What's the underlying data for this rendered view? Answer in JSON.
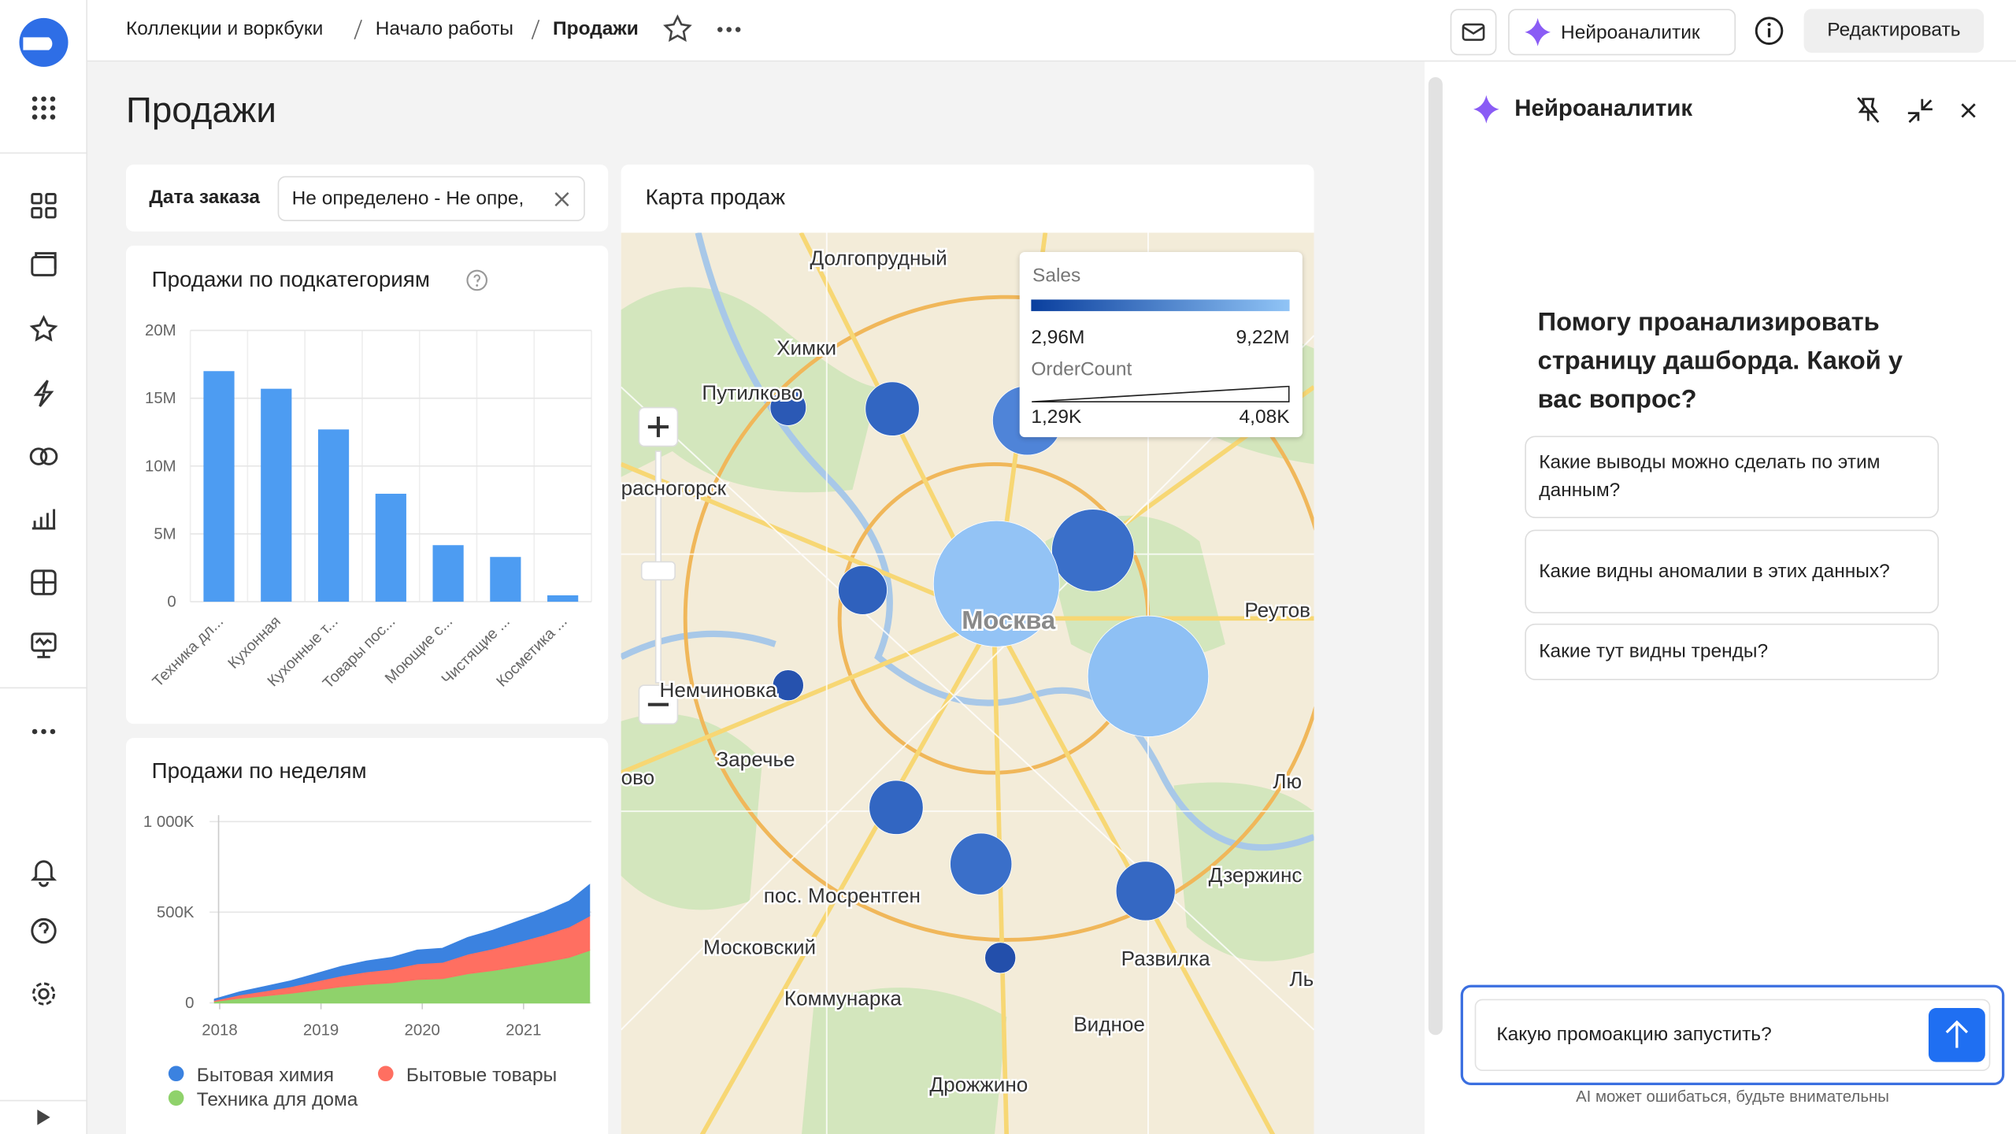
{
  "breadcrumbs": [
    "Коллекции и воркбуки",
    "Начало работы",
    "Продажи"
  ],
  "header_buttons": {
    "assistant": "Нейроаналитик",
    "edit": "Редактировать"
  },
  "page_title": "Продажи",
  "filter": {
    "label": "Дата заказа",
    "value": "Не определено - Не опре,"
  },
  "bar_chart": {
    "type": "bar",
    "title": "Продажи по подкатегориям",
    "color": "#4d9cf2",
    "categories": [
      "Техника дл...",
      "Кухонная",
      "Кухонные т...",
      "Товары пос...",
      "Моющие с...",
      "Чистящие ...",
      "Косметика ..."
    ],
    "values": [
      17000000,
      15700000,
      12700000,
      7960000,
      4170000,
      3300000,
      470000
    ],
    "ylim": [
      0,
      20000000
    ],
    "yticks": [
      {
        "value": 0,
        "label": "0"
      },
      {
        "value": 5000000,
        "label": "5M"
      },
      {
        "value": 10000000,
        "label": "10M"
      },
      {
        "value": 15000000,
        "label": "15M"
      },
      {
        "value": 20000000,
        "label": "20M"
      }
    ],
    "grid": true
  },
  "area_chart": {
    "type": "area",
    "stacked": true,
    "title": "Продажи по неделям",
    "x": [
      2017.95,
      2018.2,
      2018.45,
      2018.7,
      2018.95,
      2019.2,
      2019.45,
      2019.7,
      2019.95,
      2020.2,
      2020.45,
      2020.7,
      2020.95,
      2021.2,
      2021.45,
      2021.65
    ],
    "series": [
      {
        "name": "Техника для дома",
        "color": "#8fd26b",
        "values": [
          9000,
          27000,
          40000,
          54000,
          72000,
          90000,
          103000,
          112000,
          130000,
          135000,
          162000,
          180000,
          202000,
          225000,
          252000,
          290000
        ]
      },
      {
        "name": "Бытовые товары",
        "color": "#ff6f61",
        "values": [
          6000,
          18000,
          27000,
          36000,
          48000,
          60000,
          69000,
          75000,
          87000,
          90000,
          108000,
          120000,
          135000,
          150000,
          168000,
          190000
        ]
      },
      {
        "name": "Бытовая химия",
        "color": "#3b82e0",
        "values": [
          5000,
          15000,
          23000,
          30000,
          40000,
          50000,
          58000,
          63000,
          73000,
          75000,
          90000,
          100000,
          113000,
          125000,
          140000,
          170000
        ]
      }
    ],
    "xlim": [
      2017.9,
      2021.67
    ],
    "xticks": [
      2018,
      2019,
      2020,
      2021
    ],
    "ylim": [
      0,
      1000000
    ],
    "yticks": [
      {
        "value": 0,
        "label": "0"
      },
      {
        "value": 500000,
        "label": "500K"
      },
      {
        "value": 1000000,
        "label": "1 000K"
      }
    ]
  },
  "map": {
    "title": "Карта продаж",
    "legend": {
      "color_title": "Sales",
      "color_min": "2,96M",
      "color_max": "9,22M",
      "size_title": "OrderCount",
      "size_min": "1,29K",
      "size_max": "4,08K"
    },
    "places": [
      "Долгопрудный",
      "Химки",
      "Путилково",
      "расногорск",
      "Москва",
      "Реутов",
      "Немчиновка",
      "Заречье",
      "ово",
      "Лю",
      "Дзержинс",
      "пос. Мосрентген",
      "Московский",
      "Коммунарка",
      "Развилка",
      "Видное",
      "Дрожжино",
      "Ль"
    ]
  },
  "assistant_panel": {
    "title": "Нейроаналитик",
    "greeting": "Помогу проанализировать страницу дашборда. Какой у вас вопрос?",
    "suggestions": [
      "Какие выводы можно сделать по этим данным?",
      "Какие видны аномалии в этих данных?",
      "Какие тут видны тренды?"
    ],
    "input": "Какую промоакцию запустить?",
    "disclaimer": "AI может ошибаться, будьте внимательны"
  }
}
